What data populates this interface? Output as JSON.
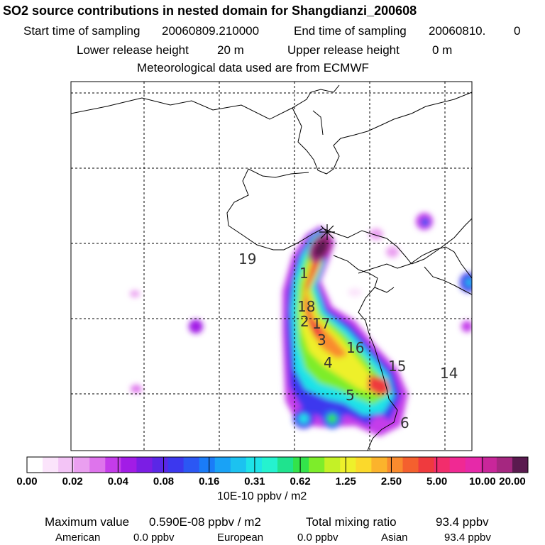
{
  "header": {
    "title": "SO2 source contributions in nested domain for Shangdianzi_200608",
    "start_label": "Start time of sampling",
    "start_value": "20060809.210000",
    "end_label": "End time of sampling",
    "end_value": "20060810.",
    "end_suffix": "0",
    "lower_label": "Lower release height",
    "lower_value": "20 m",
    "upper_label": "Upper release height",
    "upper_value": "0 m",
    "met": "Meteorological data used are from ECMWF"
  },
  "chart_data": {
    "type": "heatmap",
    "contour_labels": [
      "19",
      "1",
      "18",
      "2",
      "17",
      "3",
      "16",
      "4",
      "15",
      "14",
      "5",
      "6"
    ],
    "colorbar": {
      "ticks": [
        "0.00",
        "0.02",
        "0.04",
        "0.08",
        "0.16",
        "0.31",
        "0.62",
        "1.25",
        "2.50",
        "5.00",
        "10.00",
        "20.00"
      ],
      "colors": [
        "#ffffff",
        "#fbe4fb",
        "#f3c4f6",
        "#ea9ff0",
        "#de74ec",
        "#c43cea",
        "#a21ce6",
        "#7b1ee4",
        "#5a27e6",
        "#3c38ee",
        "#2b57f4",
        "#1a7cf8",
        "#19a2f6",
        "#1cc2f0",
        "#1ee3e8",
        "#25f2cf",
        "#1fe38e",
        "#33e34b",
        "#7ded2a",
        "#c4f126",
        "#eef02b",
        "#fbd92b",
        "#fbb32c",
        "#f98b2e",
        "#f4602e",
        "#ef3a3e",
        "#f22d6c",
        "#f02993",
        "#e629a9",
        "#c9269a",
        "#a52780",
        "#5a1a4f"
      ],
      "unit": "10E-10 ppbv / m2"
    },
    "source_marker": "+",
    "grid": true
  },
  "footer": {
    "max_label": "Maximum value",
    "max_value": "0.590E-08 ppbv / m2",
    "total_label": "Total mixing ratio",
    "total_value": "93.4 ppbv",
    "american_label": "American",
    "american_value": "0.0 ppbv",
    "european_label": "European",
    "european_value": "0.0 ppbv",
    "asian_label": "Asian",
    "asian_value": "93.4 ppbv"
  }
}
